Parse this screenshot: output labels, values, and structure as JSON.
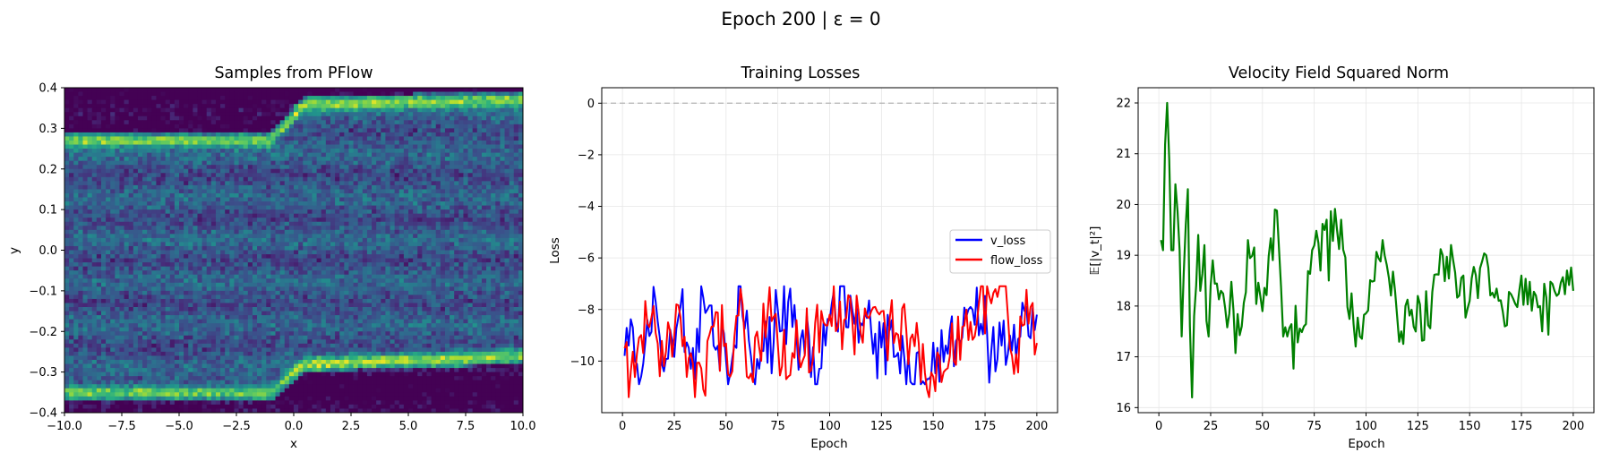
{
  "figure": {
    "suptitle": "Epoch 200 | ε = 0"
  },
  "chart_data": [
    {
      "type": "heatmap",
      "title": "Samples from PFlow",
      "xlabel": "x",
      "ylabel": "y",
      "xlim": [
        -10,
        10
      ],
      "ylim": [
        -0.4,
        0.4
      ],
      "xticks": [
        -10,
        -7.5,
        -5,
        -2.5,
        0,
        2.5,
        5,
        7.5,
        10
      ],
      "xtick_labels": [
        "−10.0",
        "−7.5",
        "−5.0",
        "−2.5",
        "0.0",
        "2.5",
        "5.0",
        "7.5",
        "10.0"
      ],
      "yticks": [
        -0.4,
        -0.3,
        -0.2,
        -0.1,
        0,
        0.1,
        0.2,
        0.3,
        0.4
      ],
      "ytick_labels": [
        "−0.4",
        "−0.3",
        "−0.2",
        "−0.1",
        "0.0",
        "0.1",
        "0.2",
        "0.3",
        "0.4"
      ],
      "colormap": "viridis",
      "bins": [
        100,
        80
      ],
      "density_ridges": [
        {
          "x": [
            -10,
            -1,
            0.5,
            10
          ],
          "y": [
            0.27,
            0.27,
            0.36,
            0.37
          ]
        },
        {
          "x": [
            -10,
            -1,
            0.5,
            10
          ],
          "y": [
            -0.35,
            -0.35,
            -0.28,
            -0.26
          ]
        }
      ],
      "grid": false
    },
    {
      "type": "line",
      "title": "Training Losses",
      "xlabel": "Epoch",
      "ylabel": "Loss",
      "xlim": [
        -10,
        210
      ],
      "ylim": [
        -12,
        0.6
      ],
      "xticks": [
        0,
        25,
        50,
        75,
        100,
        125,
        150,
        175,
        200
      ],
      "yticks": [
        -10,
        -8,
        -6,
        -4,
        -2,
        0
      ],
      "ytick_labels": [
        "−10",
        "−8",
        "−6",
        "−4",
        "−2",
        "0"
      ],
      "hline": {
        "y": 0,
        "style": "dashed",
        "color": "#b3b3b3"
      },
      "grid": true,
      "legend_position": "center-right",
      "series": [
        {
          "name": "v_loss",
          "color": "#0000ff",
          "mean": -9.3,
          "min": -10.9,
          "max": -7.1,
          "points": [
            [
              1,
              -9.8
            ],
            [
              3,
              -9.4
            ],
            [
              5,
              -8.7
            ],
            [
              8,
              -10.9
            ],
            [
              12,
              -8.4
            ],
            [
              16,
              -7.7
            ],
            [
              20,
              -10.4
            ],
            [
              28,
              -7.9
            ],
            [
              33,
              -10.3
            ],
            [
              41,
              -8.0
            ],
            [
              52,
              -10.5
            ],
            [
              57,
              -7.1
            ],
            [
              63,
              -10.6
            ],
            [
              80,
              -7.7
            ],
            [
              95,
              -10.3
            ],
            [
              102,
              -7.3
            ],
            [
              147,
              -10.7
            ],
            [
              168,
              -7.9
            ],
            [
              180,
              -10.4
            ],
            [
              195,
              -7.9
            ],
            [
              200,
              -8.2
            ]
          ]
        },
        {
          "name": "flow_loss",
          "color": "#ff0000",
          "mean": -9.3,
          "min": -11.4,
          "max": -7.1,
          "points": [
            [
              1,
              -9.5
            ],
            [
              3,
              -11.4
            ],
            [
              8,
              -9.1
            ],
            [
              14,
              -8.3
            ],
            [
              20,
              -10.2
            ],
            [
              26,
              -7.8
            ],
            [
              34,
              -10.1
            ],
            [
              39,
              -11.1
            ],
            [
              45,
              -8.1
            ],
            [
              52,
              -10.6
            ],
            [
              57,
              -7.2
            ],
            [
              60,
              -10.6
            ],
            [
              70,
              -8.2
            ],
            [
              80,
              -10.6
            ],
            [
              100,
              -8.2
            ],
            [
              122,
              -7.9
            ],
            [
              150,
              -10.6
            ],
            [
              172,
              -7.8
            ],
            [
              185,
              -7.1
            ],
            [
              189,
              -10.5
            ],
            [
              197,
              -7.9
            ],
            [
              200,
              -9.3
            ]
          ]
        }
      ]
    },
    {
      "type": "line",
      "title": "Velocity Field Squared Norm",
      "xlabel": "Epoch",
      "ylabel": "𝔼[|v_t|²]",
      "xlim": [
        -10,
        210
      ],
      "ylim": [
        15.9,
        22.3
      ],
      "xticks": [
        0,
        25,
        50,
        75,
        100,
        125,
        150,
        175,
        200
      ],
      "yticks": [
        16,
        17,
        18,
        19,
        20,
        21,
        22
      ],
      "grid": true,
      "series": [
        {
          "name": "",
          "color": "#008000",
          "mean": 18.3,
          "points": [
            [
              1,
              19.3
            ],
            [
              2,
              19.1
            ],
            [
              4,
              22.0
            ],
            [
              5,
              20.9
            ],
            [
              6,
              19.1
            ],
            [
              7,
              19.1
            ],
            [
              8,
              20.4
            ],
            [
              10,
              19.1
            ],
            [
              11,
              17.4
            ],
            [
              13,
              19.6
            ],
            [
              14,
              20.3
            ],
            [
              15,
              17.6
            ],
            [
              16,
              16.2
            ],
            [
              17,
              17.8
            ],
            [
              19,
              19.4
            ],
            [
              20,
              18.3
            ],
            [
              22,
              19.2
            ],
            [
              24,
              17.4
            ],
            [
              26,
              18.9
            ],
            [
              30,
              18.3
            ],
            [
              40,
              17.6
            ],
            [
              43,
              19.3
            ],
            [
              50,
              17.9
            ],
            [
              56,
              19.9
            ],
            [
              60,
              17.4
            ],
            [
              70,
              17.6
            ],
            [
              74,
              19.1
            ],
            [
              86,
              19.5
            ],
            [
              97,
              17.4
            ],
            [
              108,
              19.3
            ],
            [
              115,
              17.8
            ],
            [
              124,
              17.5
            ],
            [
              137,
              19.0
            ],
            [
              150,
              18.1
            ],
            [
              158,
              19.0
            ],
            [
              167,
              17.6
            ],
            [
              175,
              18.6
            ],
            [
              184,
              18.0
            ],
            [
              192,
              18.2
            ],
            [
              197,
              18.7
            ],
            [
              200,
              18.3
            ]
          ]
        }
      ]
    }
  ]
}
